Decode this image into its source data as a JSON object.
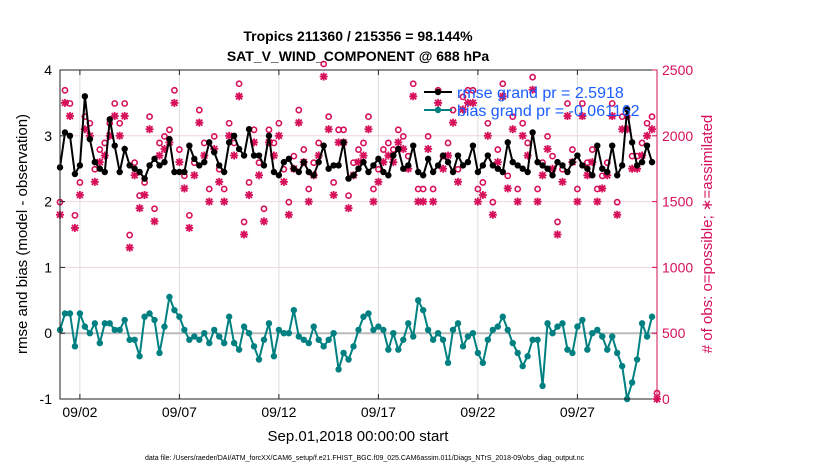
{
  "chart_data": {
    "type": "line",
    "title": "Tropics 211360 / 215356 = 98.144%",
    "subtitle": "SAT_V_WIND_COMPONENT @ 688 hPa",
    "xlabel": "Sep.01,2018 00:00:00 start",
    "ylabel": "rmse and bias (model - observation)",
    "ylabel_right": "# of obs: o=possible; ∗=assimilated",
    "footnote": "data file: /Users/raeder/DAI/ATM_forcXX/CAM6_setup/f.e21.FHIST_BGC.f09_025.CAM6assim.011/Diags_NTrS_2018-09/obs_diag_output.nc",
    "x_start": "2018-09-01 00:00",
    "time_step_hours": 6,
    "xlim": [
      "2018-09-01",
      "2018-10-01"
    ],
    "ylim": [
      -1,
      4
    ],
    "ylim_right": [
      0,
      2500
    ],
    "x_ticks": [
      {
        "label": "09/02",
        "date": "2018-09-02"
      },
      {
        "label": "09/07",
        "date": "2018-09-07"
      },
      {
        "label": "09/12",
        "date": "2018-09-12"
      },
      {
        "label": "09/17",
        "date": "2018-09-17"
      },
      {
        "label": "09/22",
        "date": "2018-09-22"
      },
      {
        "label": "09/27",
        "date": "2018-09-27"
      }
    ],
    "y_ticks": [
      "-1",
      "0",
      "1",
      "2",
      "3",
      "4"
    ],
    "y_ticks_right": [
      "0",
      "500",
      "1000",
      "1500",
      "2000",
      "2500"
    ],
    "grid": true,
    "legend_position": "top-right",
    "colors": {
      "rmse": "#000000",
      "bias": "#008080",
      "obs": "#d6105a",
      "legend_text": "#1a5cff",
      "zero_line": "#bbbbbb"
    },
    "series": [
      {
        "name": "rmse grand pr = 2.5918",
        "axis": "left",
        "values": [
          2.52,
          3.05,
          3.0,
          2.42,
          2.55,
          3.6,
          2.95,
          2.6,
          2.5,
          2.45,
          3.25,
          2.85,
          2.45,
          2.8,
          2.55,
          2.5,
          2.45,
          2.35,
          2.55,
          2.65,
          2.55,
          2.6,
          2.95,
          2.45,
          2.45,
          2.45,
          2.85,
          2.65,
          2.55,
          2.6,
          2.9,
          2.75,
          2.55,
          2.45,
          2.9,
          3.0,
          2.8,
          2.7,
          3.1,
          2.7,
          2.7,
          2.55,
          3.0,
          2.45,
          2.4,
          2.6,
          2.65,
          2.5,
          2.45,
          2.6,
          2.45,
          2.4,
          2.6,
          2.85,
          2.5,
          2.55,
          2.55,
          2.9,
          2.35,
          2.4,
          2.5,
          2.6,
          2.45,
          2.55,
          2.65,
          2.45,
          2.4,
          2.7,
          2.8,
          2.5,
          2.55,
          2.85,
          2.45,
          2.4,
          2.65,
          2.45,
          2.55,
          2.7,
          2.6,
          2.45,
          2.7,
          2.55,
          2.6,
          2.85,
          2.45,
          2.55,
          2.7,
          2.55,
          2.5,
          2.45,
          2.9,
          2.6,
          2.55,
          2.5,
          2.45,
          3.05,
          2.6,
          2.55,
          2.5,
          2.4,
          2.6,
          2.55,
          2.45,
          2.6,
          2.7,
          2.55,
          2.5,
          2.4,
          2.85,
          2.5,
          2.45,
          2.85,
          2.4,
          2.55,
          3.4,
          2.9,
          2.55,
          2.6,
          2.85,
          2.6,
          null
        ]
      },
      {
        "name": "bias grand pr = -0.061162",
        "axis": "left",
        "values": [
          0.05,
          0.3,
          0.3,
          -0.2,
          0.3,
          0.1,
          0.0,
          0.15,
          -0.15,
          0.15,
          0.15,
          0.05,
          0.05,
          0.2,
          -0.1,
          -0.1,
          -0.35,
          0.25,
          0.3,
          0.2,
          -0.3,
          0.1,
          0.55,
          0.35,
          0.25,
          0.05,
          -0.1,
          -0.05,
          -0.1,
          0.0,
          -0.15,
          0.05,
          -0.05,
          -0.15,
          0.25,
          -0.15,
          -0.25,
          0.1,
          0.0,
          -0.2,
          -0.4,
          -0.1,
          0.15,
          -0.35,
          0.05,
          0.0,
          0.0,
          0.35,
          -0.05,
          -0.1,
          -0.15,
          0.1,
          -0.1,
          -0.2,
          -0.1,
          0.0,
          -0.55,
          -0.3,
          -0.4,
          -0.2,
          0.05,
          0.25,
          0.3,
          0.05,
          0.1,
          0.05,
          -0.25,
          0.0,
          -0.25,
          -0.1,
          0.15,
          -0.05,
          0.5,
          0.35,
          0.05,
          -0.1,
          0.0,
          -0.1,
          -0.45,
          0.05,
          0.15,
          -0.2,
          -0.05,
          0.0,
          -0.3,
          -0.45,
          -0.1,
          0.05,
          0.1,
          0.25,
          0.05,
          -0.15,
          -0.3,
          -0.5,
          -0.35,
          -0.1,
          -0.1,
          -0.8,
          0.15,
          0.0,
          0.1,
          0.15,
          -0.25,
          -0.3,
          0.1,
          0.2,
          -0.25,
          0.0,
          0.05,
          -0.05,
          -0.25,
          -0.05,
          -0.3,
          -0.5,
          -1.0,
          -0.75,
          -0.4,
          0.15,
          -0.05,
          0.25,
          null
        ]
      },
      {
        "name": "possible",
        "axis": "right",
        "marker": "o",
        "values": [
          1450,
          2300,
          2200,
          1350,
          1600,
          2100,
          2050,
          1700,
          1850,
          1900,
          2050,
          2200,
          2050,
          2200,
          1200,
          1750,
          1500,
          1600,
          2100,
          1400,
          1900,
          1950,
          2000,
          2300,
          1850,
          1650,
          1350,
          1750,
          2150,
          1900,
          1550,
          1950,
          1700,
          1550,
          2050,
          1900,
          2350,
          1300,
          1600,
          2000,
          1750,
          1400,
          2000,
          1900,
          2050,
          1700,
          1450,
          1800,
          2150,
          1850,
          1550,
          1750,
          1900,
          2500,
          2100,
          1600,
          2000,
          2000,
          1500,
          1750,
          1850,
          1900,
          2100,
          1550,
          1700,
          1850,
          1900,
          1850,
          2000,
          1950,
          1800,
          2350,
          1550,
          1550,
          1950,
          1550,
          2300,
          1800,
          1900,
          2150,
          1700,
          2250,
          2300,
          2300,
          1550,
          1600,
          2050,
          1450,
          1850,
          2350,
          1650,
          2100,
          1550,
          2050,
          1900,
          2400,
          1550,
          1750,
          1950,
          1800,
          1300,
          1700,
          2200,
          1850,
          1550,
          2200,
          1750,
          1850,
          1550,
          1650,
          1750,
          2200,
          1450,
          2100,
          2100,
          1800,
          1800,
          1900,
          2050,
          2100,
          0
        ]
      },
      {
        "name": "assimilated",
        "axis": "right",
        "marker": "*",
        "values": [
          1400,
          2250,
          2150,
          1300,
          1550,
          2050,
          2000,
          1650,
          1800,
          1850,
          2000,
          2150,
          2000,
          2150,
          1150,
          1700,
          1450,
          1550,
          2050,
          1350,
          1850,
          1900,
          1950,
          2250,
          1800,
          1600,
          1300,
          1700,
          2100,
          1850,
          1500,
          1900,
          1650,
          1500,
          2000,
          1850,
          2300,
          1250,
          1550,
          1950,
          1700,
          1350,
          1950,
          1850,
          2000,
          1650,
          1400,
          1750,
          2100,
          1800,
          1500,
          1700,
          1850,
          2450,
          2050,
          1550,
          1950,
          1950,
          1450,
          1700,
          1800,
          1850,
          2050,
          1500,
          1650,
          1800,
          1850,
          1800,
          1950,
          1900,
          1750,
          2300,
          1500,
          1500,
          1900,
          1500,
          2250,
          1750,
          1850,
          2100,
          1650,
          2200,
          2250,
          2250,
          1500,
          1550,
          2000,
          1400,
          1800,
          2300,
          1600,
          2050,
          1500,
          2000,
          1850,
          2350,
          1500,
          1700,
          1900,
          1750,
          1250,
          1650,
          2150,
          1800,
          1500,
          2150,
          1700,
          1800,
          1500,
          1600,
          1700,
          2150,
          1400,
          2050,
          2050,
          1750,
          1750,
          1850,
          2000,
          2050,
          0
        ]
      }
    ]
  }
}
